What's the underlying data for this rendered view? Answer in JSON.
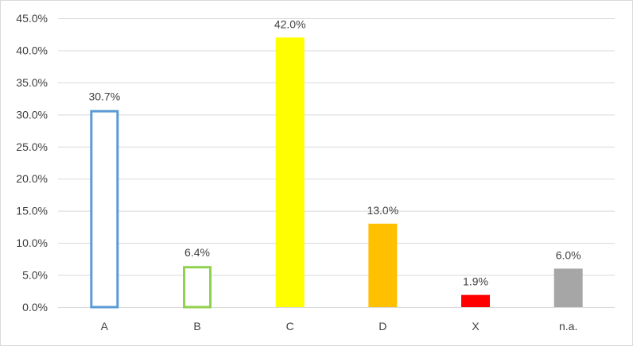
{
  "chart_data": {
    "type": "bar",
    "title": "",
    "xlabel": "",
    "ylabel": "",
    "categories": [
      "A",
      "B",
      "C",
      "D",
      "X",
      "n.a."
    ],
    "values": [
      30.7,
      6.4,
      42.0,
      13.0,
      1.9,
      6.0
    ],
    "data_labels": [
      "30.7%",
      "6.4%",
      "42.0%",
      "13.0%",
      "1.9%",
      "6.0%"
    ],
    "ylim": [
      0,
      45
    ],
    "y_ticks": [
      0,
      5,
      10,
      15,
      20,
      25,
      30,
      35,
      40,
      45
    ],
    "y_tick_labels": [
      "0.0%",
      "5.0%",
      "10.0%",
      "15.0%",
      "20.0%",
      "25.0%",
      "30.0%",
      "35.0%",
      "40.0%",
      "45.0%"
    ],
    "grid": true,
    "legend": "none",
    "bar_styles": [
      {
        "fill": "#ffffff",
        "stroke": "#5b9bd5"
      },
      {
        "fill": "#ffffff",
        "stroke": "#92d050"
      },
      {
        "fill": "#ffff00",
        "stroke": "none"
      },
      {
        "fill": "#ffc000",
        "stroke": "none"
      },
      {
        "fill": "#ff0000",
        "stroke": "none"
      },
      {
        "fill": "#a6a6a6",
        "stroke": "none"
      }
    ],
    "colors": {
      "grid": "#d9d9d9",
      "text": "#404040",
      "axis": "#d9d9d9"
    }
  }
}
